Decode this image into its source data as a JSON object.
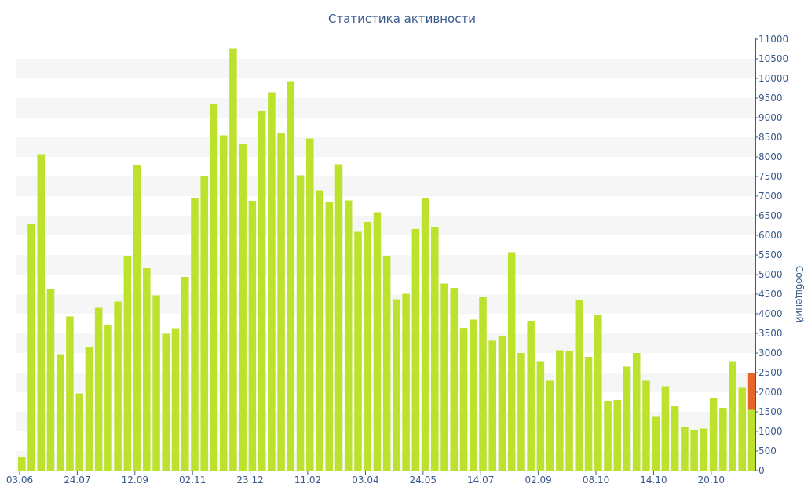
{
  "chart_data": {
    "type": "bar",
    "title": "Статистика активности",
    "ylabel": "Сообщений",
    "xlabel": "",
    "ylim": [
      0,
      11000
    ],
    "y_ticks": [
      0,
      500,
      1000,
      1500,
      2000,
      2500,
      3000,
      3500,
      4000,
      4500,
      5000,
      5500,
      6000,
      6500,
      7000,
      7500,
      8000,
      8500,
      9000,
      9500,
      10000,
      10500,
      11000
    ],
    "y_axis_position": "right",
    "x_tick_labels": [
      {
        "label": "03.06",
        "index": 0
      },
      {
        "label": "24.07",
        "index": 6
      },
      {
        "label": "12.09",
        "index": 12
      },
      {
        "label": "02.11",
        "index": 18
      },
      {
        "label": "23.12",
        "index": 24
      },
      {
        "label": "11.02",
        "index": 30
      },
      {
        "label": "03.04",
        "index": 36
      },
      {
        "label": "24.05",
        "index": 42
      },
      {
        "label": "14.07",
        "index": 48
      },
      {
        "label": "02.09",
        "index": 54
      },
      {
        "label": "08.10",
        "index": 60
      },
      {
        "label": "14.10",
        "index": 66
      },
      {
        "label": "20.10",
        "index": 72
      }
    ],
    "grid": "alternating horizontal bands",
    "colors": {
      "bar": "#bde22e",
      "highlight": "#e8652a",
      "axis": "#3a5a8c",
      "band": "#f6f6f6"
    },
    "series": [
      {
        "values": [
          350,
          6300,
          8070,
          4630,
          2970,
          3930,
          1970,
          3140,
          4150,
          3720,
          4310,
          5460,
          7800,
          5160,
          4470,
          3490,
          3630,
          4940,
          6950,
          7510,
          9360,
          8550,
          10770,
          8340,
          6880,
          9160,
          9650,
          8600,
          9930,
          7530,
          8470,
          7150,
          6840,
          7810,
          6890,
          6090,
          6340,
          6590,
          5480,
          4370,
          4510,
          6160,
          6950,
          6210,
          4770,
          4660,
          3640,
          3850,
          4420,
          3310,
          3440,
          5570,
          3000,
          3820,
          2790,
          2290,
          3070,
          3050,
          4360,
          2900,
          3980,
          1780,
          1800,
          2650,
          3000,
          2290,
          1390,
          2150,
          1640,
          1100,
          1040,
          1070,
          1850,
          1600,
          2790,
          2110,
          1550
        ]
      }
    ],
    "last_bar_highlight": {
      "from": 1550,
      "to": 2480
    }
  }
}
